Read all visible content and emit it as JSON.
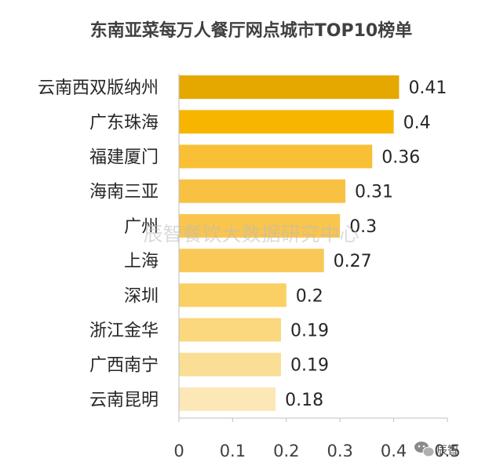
{
  "chart_data": {
    "type": "bar",
    "orientation": "horizontal",
    "title": "东南亚菜每万人餐厅网点城市TOP10榜单",
    "categories": [
      "云南西双版纳州",
      "广东珠海",
      "福建厦门",
      "海南三亚",
      "广州",
      "上海",
      "深圳",
      "浙江金华",
      "广西南宁",
      "云南昆明"
    ],
    "values": [
      0.41,
      0.4,
      0.36,
      0.31,
      0.3,
      0.27,
      0.2,
      0.19,
      0.19,
      0.18
    ],
    "value_labels": [
      "0.41",
      "0.4",
      "0.36",
      "0.31",
      "0.3",
      "0.27",
      "0.2",
      "0.19",
      "0.19",
      "0.18"
    ],
    "xlim": [
      0,
      0.5
    ],
    "xticks": [
      "0",
      "0.1",
      "0.2",
      "0.3",
      "0.4",
      "0.5"
    ],
    "grid": false,
    "bar_colors": [
      "#e5a800",
      "#f7b500",
      "#f9c036",
      "#f9c141",
      "#f9c54d",
      "#f9c857",
      "#fad064",
      "#fbd77d",
      "#fbde96",
      "#fce7b7"
    ]
  },
  "watermark": "辰智餐饮大数据研究中心",
  "brand": "辰智",
  "brand_icon": "wechat-icon"
}
